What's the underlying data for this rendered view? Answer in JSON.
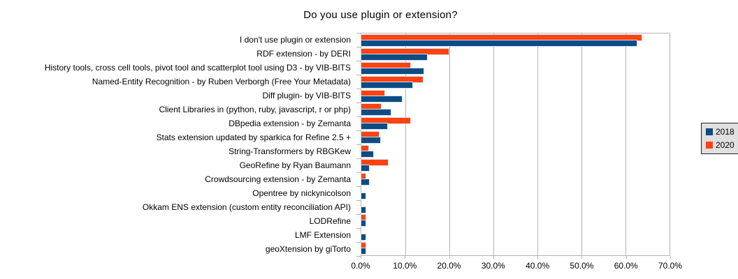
{
  "chart_data": {
    "type": "bar",
    "orientation": "horizontal",
    "title": "Do you use plugin or extension?",
    "categories": [
      "I don't use plugin or extension",
      "RDF extension - by DERI",
      "History tools, cross cell tools, pivot tool and scatterplot tool using D3 - by VIB-BITS",
      "Named-Entity Recognition - by Ruben Verborgh (Free Your Metadata)",
      "Diff plugin- by VIB-BITS",
      "Client Libraries in (python, ruby, javascript, r or php)",
      "DBpedia extension - by Zemanta",
      "Stats extension updated by sparkica for Refine 2.5 +",
      "String-Transformers by RBGKew",
      "GeoRefine by Ryan Baumann",
      "Crowdsourcing extension - by Zemanta",
      "Opentree by nickynicolson",
      "Okkam ENS extension (custom entity reconciliation API)",
      "LODRefine",
      "LMF Extension",
      "geoXtension by giTorto"
    ],
    "series": [
      {
        "name": "2018",
        "color": "#0e4c85",
        "values": [
          62.5,
          14.9,
          14.1,
          11.6,
          9.2,
          6.7,
          5.9,
          4.3,
          2.7,
          1.8,
          1.8,
          1.0,
          1.0,
          1.0,
          1.0,
          1.0
        ]
      },
      {
        "name": "2020",
        "color": "#ff420e",
        "values": [
          63.7,
          19.8,
          11.1,
          14.0,
          5.2,
          4.5,
          11.1,
          3.9,
          1.6,
          6.0,
          1.0,
          0,
          0,
          1.0,
          0,
          1.0
        ]
      }
    ],
    "xlim": [
      0,
      70
    ],
    "x_tick_labels": [
      "0.0%",
      "10.0%",
      "20.0%",
      "30.0%",
      "40.0%",
      "50.0%",
      "60.0%",
      "70.0%"
    ],
    "grid": "vertical-only",
    "legend_position": "right",
    "series_order_top_to_bottom": [
      "2020",
      "2018"
    ]
  },
  "colors": {
    "background": "#ffffff",
    "grid_and_axis": "#b3b3b3",
    "legend_background": "#e0e0e0",
    "legend_border": "#1f1f1f",
    "series_2018": "#0e4c85",
    "series_2020": "#ff420e"
  }
}
